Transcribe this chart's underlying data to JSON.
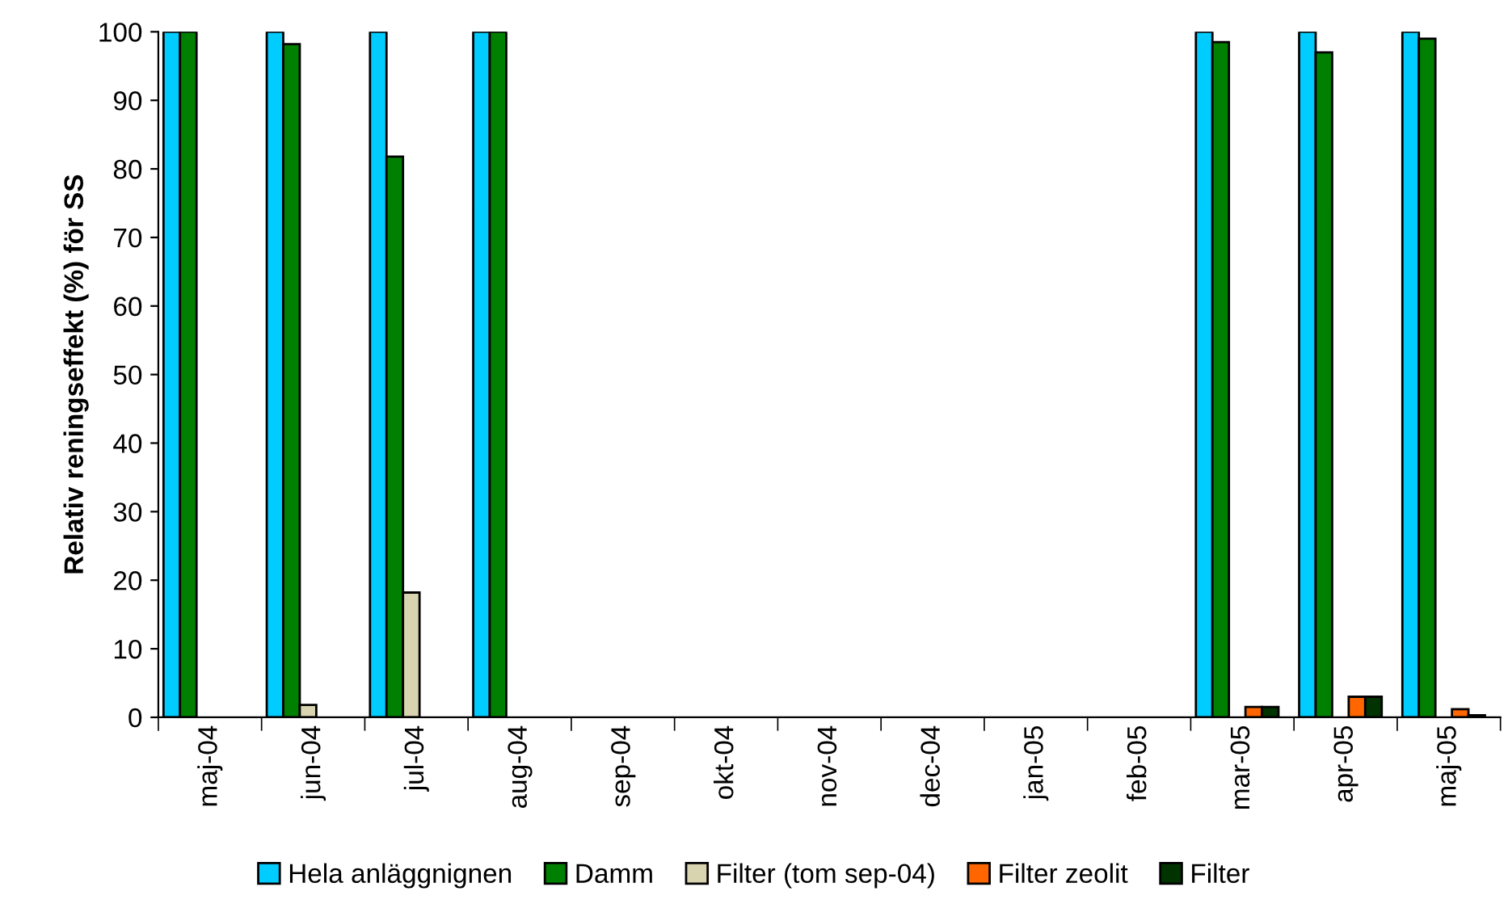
{
  "chart_data": {
    "type": "bar",
    "ylabel": "Relativ reningseffekt (%) för SS",
    "categories": [
      "maj-04",
      "jun-04",
      "jul-04",
      "aug-04",
      "sep-04",
      "okt-04",
      "nov-04",
      "dec-04",
      "jan-05",
      "feb-05",
      "mar-05",
      "apr-05",
      "maj-05"
    ],
    "series": [
      {
        "name": "Hela anläggnignen",
        "color": "#00ccff",
        "values": [
          100,
          100,
          100,
          100,
          null,
          null,
          null,
          null,
          null,
          null,
          100,
          100,
          100
        ]
      },
      {
        "name": "Damm",
        "color": "#008000",
        "values": [
          100,
          98.2,
          81.8,
          100,
          null,
          null,
          null,
          null,
          null,
          null,
          98.5,
          97,
          99
        ]
      },
      {
        "name": "Filter (tom sep-04)",
        "color": "#d8d4b0",
        "values": [
          null,
          1.8,
          18.2,
          null,
          null,
          null,
          null,
          null,
          null,
          null,
          null,
          null,
          null
        ]
      },
      {
        "name": "Filter zeolit",
        "color": "#ff6600",
        "values": [
          null,
          null,
          null,
          null,
          null,
          null,
          null,
          null,
          null,
          null,
          1.5,
          3,
          1.2
        ]
      },
      {
        "name": "Filter",
        "color": "#003300",
        "values": [
          null,
          null,
          null,
          null,
          null,
          null,
          null,
          null,
          null,
          null,
          1.5,
          3,
          0.3
        ]
      }
    ],
    "ylim": [
      0,
      100
    ],
    "yticks": [
      0,
      10,
      20,
      30,
      40,
      50,
      60,
      70,
      80,
      90,
      100
    ],
    "grid": false,
    "legend": "bottom"
  }
}
